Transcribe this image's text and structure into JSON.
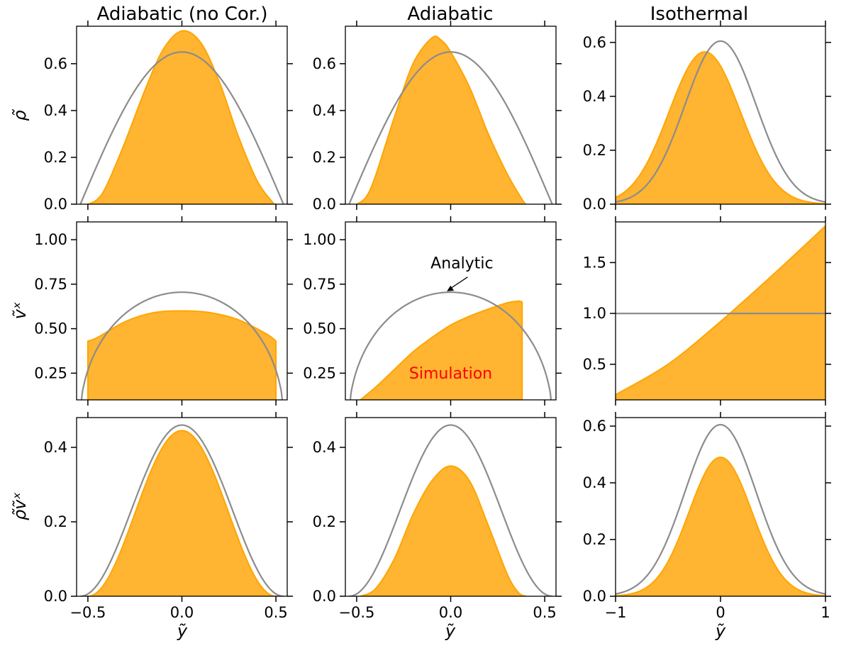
{
  "column_titles": [
    "Adiabatic (no Cor.)",
    "Adiabatic",
    "Isothermal"
  ],
  "row_labels": [
    "ρ̃",
    "ṽˣ",
    "ρ̃ṽˣ"
  ],
  "x_label": "ỹ",
  "colors": {
    "simulation_fill": "#FFB432",
    "simulation_edge": "#FFA500",
    "analytic": "#8C8C8C",
    "annotation_red": "#FF0000"
  },
  "chart_data": [
    {
      "type": "area",
      "panel": "r0c0",
      "title": "Adiabatic (no Cor.)",
      "ylabel": "ρ̃",
      "xlim": [
        -0.56,
        0.56
      ],
      "ylim": [
        0,
        0.76
      ],
      "xticks": [
        -0.5,
        0.0,
        0.5
      ],
      "xtick_labels": [
        "",
        "",
        ""
      ],
      "yticks": [
        0,
        0.2,
        0.4,
        0.6
      ],
      "ytick_labels": [
        "0.0",
        "0.2",
        "0.4",
        "0.6"
      ],
      "series": [
        {
          "name": "Simulation",
          "kind": "fill",
          "points": [
            [
              -0.5,
              0
            ],
            [
              -0.45,
              0.02
            ],
            [
              -0.4,
              0.08
            ],
            [
              -0.3,
              0.27
            ],
            [
              -0.2,
              0.48
            ],
            [
              -0.1,
              0.66
            ],
            [
              0,
              0.74
            ],
            [
              0.1,
              0.69
            ],
            [
              0.2,
              0.52
            ],
            [
              0.3,
              0.29
            ],
            [
              0.4,
              0.1
            ],
            [
              0.48,
              0.01
            ],
            [
              0.5,
              0
            ]
          ]
        },
        {
          "name": "Analytic",
          "kind": "line",
          "func": "cos",
          "amp": 0.65,
          "center": 0,
          "half_width": 0.54,
          "range": [
            -0.54,
            0.54
          ]
        }
      ]
    },
    {
      "type": "area",
      "panel": "r0c1",
      "title": "Adiabatic",
      "ylabel": "",
      "xlim": [
        -0.56,
        0.56
      ],
      "ylim": [
        0,
        0.76
      ],
      "xticks": [
        -0.5,
        0.0,
        0.5
      ],
      "xtick_labels": [
        "",
        "",
        ""
      ],
      "yticks": [
        0,
        0.2,
        0.4,
        0.6
      ],
      "ytick_labels": [
        "0.0",
        "0.2",
        "0.4",
        "0.6"
      ],
      "series": [
        {
          "name": "Simulation",
          "kind": "fill",
          "points": [
            [
              -0.5,
              0
            ],
            [
              -0.45,
              0.03
            ],
            [
              -0.4,
              0.12
            ],
            [
              -0.3,
              0.37
            ],
            [
              -0.2,
              0.6
            ],
            [
              -0.1,
              0.71
            ],
            [
              -0.05,
              0.7
            ],
            [
              0,
              0.65
            ],
            [
              0.1,
              0.5
            ],
            [
              0.2,
              0.3
            ],
            [
              0.3,
              0.13
            ],
            [
              0.38,
              0.02
            ],
            [
              0.4,
              0
            ]
          ]
        },
        {
          "name": "Analytic",
          "kind": "line",
          "func": "cos",
          "amp": 0.65,
          "center": 0,
          "half_width": 0.54,
          "range": [
            -0.54,
            0.54
          ]
        }
      ]
    },
    {
      "type": "area",
      "panel": "r0c2",
      "title": "Isothermal",
      "ylabel": "",
      "xlim": [
        -1,
        1
      ],
      "ylim": [
        0,
        0.66
      ],
      "xticks": [
        -1,
        0,
        1
      ],
      "xtick_labels": [
        "",
        "",
        ""
      ],
      "yticks": [
        0,
        0.2,
        0.4,
        0.6
      ],
      "ytick_labels": [
        "0.0",
        "0.2",
        "0.4",
        "0.6"
      ],
      "series": [
        {
          "name": "Simulation",
          "kind": "fill",
          "func": "gauss",
          "amp": 0.565,
          "center": -0.15,
          "sigma": 0.34,
          "range": [
            -1,
            1
          ]
        },
        {
          "name": "Analytic",
          "kind": "line",
          "func": "gauss",
          "amp": 0.605,
          "center": 0,
          "sigma": 0.34,
          "range": [
            -1,
            1
          ]
        }
      ]
    },
    {
      "type": "area",
      "panel": "r1c0",
      "title": "",
      "ylabel": "ṽˣ",
      "xlim": [
        -0.56,
        0.56
      ],
      "ylim": [
        0.1,
        1.1
      ],
      "xticks": [
        -0.5,
        0.0,
        0.5
      ],
      "xtick_labels": [
        "",
        "",
        ""
      ],
      "yticks": [
        0.25,
        0.5,
        0.75,
        1.0
      ],
      "ytick_labels": [
        "0.25",
        "0.50",
        "0.75",
        "1.00"
      ],
      "series": [
        {
          "name": "Simulation",
          "kind": "fill",
          "points": [
            [
              -0.5,
              0.43
            ],
            [
              -0.45,
              0.45
            ],
            [
              -0.3,
              0.54
            ],
            [
              -0.15,
              0.59
            ],
            [
              0,
              0.6
            ],
            [
              0.15,
              0.59
            ],
            [
              0.3,
              0.55
            ],
            [
              0.45,
              0.47
            ],
            [
              0.5,
              0.43
            ]
          ]
        },
        {
          "name": "Analytic",
          "kind": "line",
          "func": "semicircle",
          "amp": 0.705,
          "center": 0,
          "half_width": 0.54,
          "range": [
            -0.54,
            0.54
          ]
        }
      ]
    },
    {
      "type": "area",
      "panel": "r1c1",
      "title": "",
      "ylabel": "",
      "xlim": [
        -0.56,
        0.56
      ],
      "ylim": [
        0.1,
        1.1
      ],
      "xticks": [
        -0.5,
        0.0,
        0.5
      ],
      "xtick_labels": [
        "",
        "",
        ""
      ],
      "yticks": [
        0.25,
        0.5,
        0.75,
        1.0
      ],
      "ytick_labels": [
        "0.25",
        "0.50",
        "0.75",
        "1.00"
      ],
      "annotations": {
        "analytic": "Analytic",
        "simulation": "Simulation"
      },
      "series": [
        {
          "name": "Simulation",
          "kind": "fill",
          "points": [
            [
              -0.48,
              0.1
            ],
            [
              -0.4,
              0.17
            ],
            [
              -0.3,
              0.27
            ],
            [
              -0.2,
              0.37
            ],
            [
              -0.1,
              0.45
            ],
            [
              0,
              0.52
            ],
            [
              0.1,
              0.57
            ],
            [
              0.2,
              0.61
            ],
            [
              0.3,
              0.645
            ],
            [
              0.36,
              0.655
            ],
            [
              0.38,
              0.65
            ]
          ]
        },
        {
          "name": "Analytic",
          "kind": "line",
          "func": "semicircle",
          "amp": 0.705,
          "center": 0,
          "half_width": 0.54,
          "range": [
            -0.54,
            0.54
          ]
        }
      ]
    },
    {
      "type": "area",
      "panel": "r1c2",
      "title": "",
      "ylabel": "",
      "xlim": [
        -1,
        1
      ],
      "ylim": [
        0.15,
        1.9
      ],
      "xticks": [
        -1,
        0,
        1
      ],
      "xtick_labels": [
        "",
        "",
        ""
      ],
      "yticks": [
        0.5,
        1.0,
        1.5
      ],
      "ytick_labels": [
        "0.5",
        "1.0",
        "1.5"
      ],
      "series": [
        {
          "name": "Simulation",
          "kind": "fill",
          "points": [
            [
              -1,
              0.2
            ],
            [
              -0.5,
              0.5
            ],
            [
              0,
              0.92
            ],
            [
              0.5,
              1.38
            ],
            [
              1,
              1.86
            ]
          ]
        },
        {
          "name": "Analytic",
          "kind": "line",
          "points": [
            [
              -1,
              1.0
            ],
            [
              1,
              1.0
            ]
          ]
        }
      ]
    },
    {
      "type": "area",
      "panel": "r2c0",
      "title": "",
      "ylabel": "ρ̃ṽˣ",
      "xlim": [
        -0.56,
        0.56
      ],
      "ylim": [
        0,
        0.48
      ],
      "xticks": [
        -0.5,
        0.0,
        0.5
      ],
      "xtick_labels": [
        "−0.5",
        "0.0",
        "0.5"
      ],
      "yticks": [
        0,
        0.2,
        0.4
      ],
      "ytick_labels": [
        "0.0",
        "0.2",
        "0.4"
      ],
      "series": [
        {
          "name": "Simulation",
          "kind": "fill",
          "func": "cos2",
          "amp": 0.445,
          "center": 0,
          "half_width": 0.5,
          "range": [
            -0.5,
            0.5
          ]
        },
        {
          "name": "Analytic",
          "kind": "line",
          "func": "cos2",
          "amp": 0.46,
          "center": 0,
          "half_width": 0.54,
          "range": [
            -0.54,
            0.54
          ]
        }
      ]
    },
    {
      "type": "area",
      "panel": "r2c1",
      "title": "",
      "ylabel": "",
      "xlim": [
        -0.56,
        0.56
      ],
      "ylim": [
        0,
        0.48
      ],
      "xticks": [
        -0.5,
        0.0,
        0.5
      ],
      "xtick_labels": [
        "−0.5",
        "0.0",
        "0.5"
      ],
      "yticks": [
        0,
        0.2,
        0.4
      ],
      "ytick_labels": [
        "0.0",
        "0.2",
        "0.4"
      ],
      "series": [
        {
          "name": "Simulation",
          "kind": "fill",
          "points": [
            [
              -0.48,
              0
            ],
            [
              -0.4,
              0.02
            ],
            [
              -0.3,
              0.1
            ],
            [
              -0.2,
              0.22
            ],
            [
              -0.1,
              0.31
            ],
            [
              0,
              0.35
            ],
            [
              0.1,
              0.31
            ],
            [
              0.2,
              0.19
            ],
            [
              0.3,
              0.06
            ],
            [
              0.36,
              0.01
            ],
            [
              0.4,
              0
            ]
          ]
        },
        {
          "name": "Analytic",
          "kind": "line",
          "func": "cos2",
          "amp": 0.46,
          "center": 0,
          "half_width": 0.54,
          "range": [
            -0.54,
            0.54
          ]
        }
      ]
    },
    {
      "type": "area",
      "panel": "r2c2",
      "title": "",
      "ylabel": "",
      "xlim": [
        -1,
        1
      ],
      "ylim": [
        0,
        0.63
      ],
      "xticks": [
        -1,
        0,
        1
      ],
      "xtick_labels": [
        "−1",
        "0",
        "1"
      ],
      "yticks": [
        0,
        0.2,
        0.4,
        0.6
      ],
      "ytick_labels": [
        "0.0",
        "0.2",
        "0.4",
        "0.6"
      ],
      "series": [
        {
          "name": "Simulation",
          "kind": "fill",
          "func": "gauss",
          "amp": 0.49,
          "center": 0,
          "sigma": 0.3,
          "range": [
            -1,
            1
          ]
        },
        {
          "name": "Analytic",
          "kind": "line",
          "func": "gauss",
          "amp": 0.605,
          "center": 0,
          "sigma": 0.34,
          "range": [
            -1,
            1
          ]
        }
      ]
    }
  ]
}
